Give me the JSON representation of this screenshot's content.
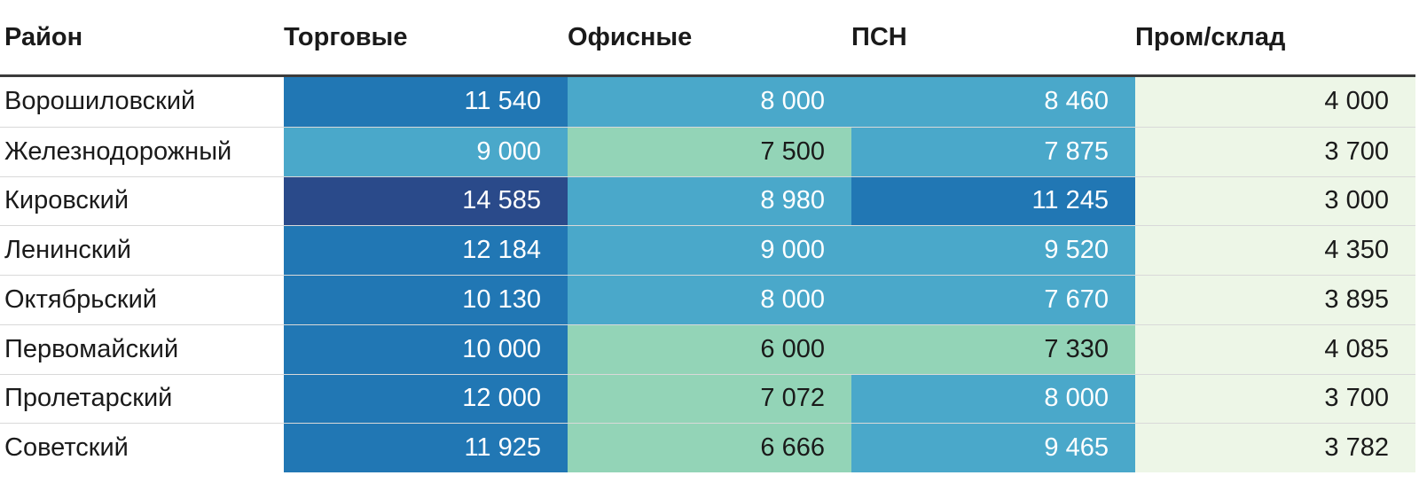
{
  "table": {
    "columns": [
      {
        "label": "Район"
      },
      {
        "label": "Торговые"
      },
      {
        "label": "Офисные"
      },
      {
        "label": "ПСН"
      },
      {
        "label": "Пром/склад"
      }
    ],
    "rows": [
      {
        "district": "Ворошиловский",
        "values": [
          "11 540",
          "8 000",
          "8 460",
          "4 000"
        ]
      },
      {
        "district": "Железнодорожный",
        "values": [
          "9 000",
          "7 500",
          "7 875",
          "3 700"
        ]
      },
      {
        "district": "Кировский",
        "values": [
          "14 585",
          "8 980",
          "11 245",
          "3 000"
        ]
      },
      {
        "district": "Ленинский",
        "values": [
          "12 184",
          "9 000",
          "9 520",
          "4 350"
        ]
      },
      {
        "district": "Октябрьский",
        "values": [
          "10 130",
          "8 000",
          "7 670",
          "3 895"
        ]
      },
      {
        "district": "Первомайский",
        "values": [
          "10 000",
          "6 000",
          "7 330",
          "4 085"
        ]
      },
      {
        "district": "Пролетарский",
        "values": [
          "12 000",
          "7 072",
          "8 000",
          "3 700"
        ]
      },
      {
        "district": "Советский",
        "values": [
          "11 925",
          "6 666",
          "9 465",
          "3 782"
        ]
      }
    ]
  },
  "palette": {
    "scale": [
      "#edf6e7",
      "#93d4b7",
      "#4aa8ca",
      "#2177b4",
      "#2a4a8a"
    ],
    "text_dark": "#1a1a1a",
    "text_light": "#ffffff",
    "header_border": "#3b3b3b",
    "row_separator": "#d9d9d9",
    "background": "#ffffff"
  },
  "chart_data": {
    "type": "heatmap",
    "title": "",
    "row_label_column": "Район",
    "rows": [
      "Ворошиловский",
      "Железнодорожный",
      "Кировский",
      "Ленинский",
      "Октябрьский",
      "Первомайский",
      "Пролетарский",
      "Советский"
    ],
    "columns": [
      "Торговые",
      "Офисные",
      "ПСН",
      "Пром/склад"
    ],
    "values": [
      [
        11540,
        8000,
        8460,
        4000
      ],
      [
        9000,
        7500,
        7875,
        3700
      ],
      [
        14585,
        8980,
        11245,
        3000
      ],
      [
        12184,
        9000,
        9520,
        4350
      ],
      [
        10130,
        8000,
        7670,
        3895
      ],
      [
        10000,
        6000,
        7330,
        4085
      ],
      [
        12000,
        7072,
        8000,
        3700
      ],
      [
        11925,
        6666,
        9465,
        3782
      ]
    ],
    "color_scale": {
      "min": 3000,
      "max": 14585,
      "bins": 5,
      "mapping": "equal-interval, low values pale green -> high values dark blue",
      "colors": [
        "#edf6e7",
        "#93d4b7",
        "#4aa8ca",
        "#2177b4",
        "#2a4a8a"
      ]
    },
    "legend": "none",
    "grid": "thin light separators between rows"
  }
}
